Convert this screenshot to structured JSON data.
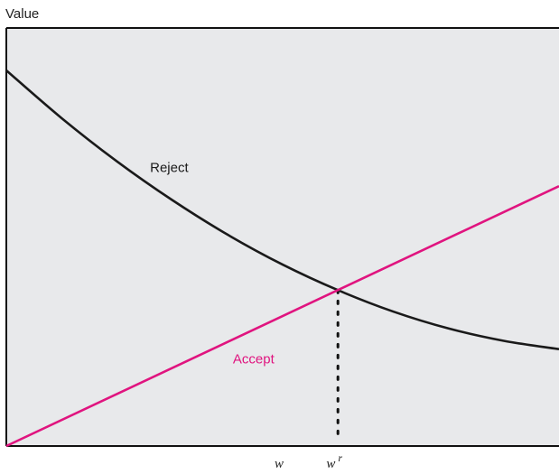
{
  "chart_data": {
    "type": "line",
    "ylabel": "Value",
    "x_ticks": [
      {
        "label": "w",
        "sup": "",
        "x": 0.5
      },
      {
        "label": "w",
        "sup": "r",
        "x": 0.6
      }
    ],
    "xlim": [
      0,
      1
    ],
    "ylim": [
      0,
      1
    ],
    "grid": false,
    "background": "#e8e9eb",
    "series": [
      {
        "name": "Reject",
        "color": "#1a1a1a",
        "x": [
          0.0,
          0.1,
          0.2,
          0.3,
          0.4,
          0.5,
          0.6,
          0.7,
          0.8,
          0.9,
          1.0
        ],
        "y": [
          1.0,
          0.873,
          0.758,
          0.655,
          0.563,
          0.483,
          0.415,
          0.358,
          0.313,
          0.28,
          0.258
        ]
      },
      {
        "name": "Accept",
        "color": "#e0147f",
        "x": [
          0.0,
          1.0
        ],
        "y": [
          0.0,
          0.692
        ]
      }
    ],
    "annotations": [
      {
        "text": "Reject",
        "series": 0,
        "x": 0.26,
        "y": 0.73
      },
      {
        "text": "Accept",
        "series": 1,
        "x": 0.41,
        "y": 0.22
      }
    ],
    "reservation_line": {
      "x": 0.6,
      "y": 0.415,
      "style": "dotted"
    }
  }
}
